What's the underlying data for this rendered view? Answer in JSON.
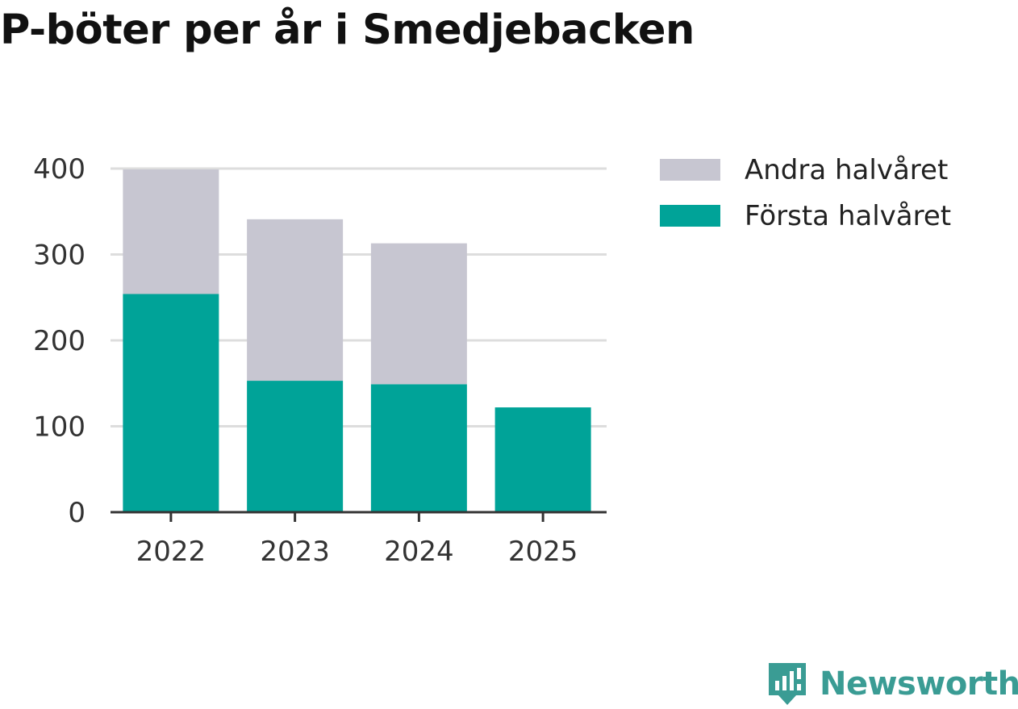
{
  "title": "P-böter per år i Smedjebacken",
  "chart_data": {
    "type": "bar",
    "stacked": true,
    "categories": [
      "2022",
      "2023",
      "2024",
      "2025"
    ],
    "series": [
      {
        "name": "Första halvåret",
        "values": [
          254,
          153,
          149,
          122
        ],
        "color": "#00a398"
      },
      {
        "name": "Andra halvåret",
        "values": [
          145,
          188,
          164,
          0
        ],
        "color": "#c7c6d1"
      }
    ],
    "ylim": [
      0,
      400
    ],
    "yticks": [
      0,
      100,
      200,
      300,
      400
    ],
    "xlabel": "",
    "ylabel": "",
    "grid": true,
    "legend_position": "right"
  },
  "legend": [
    {
      "label": "Andra halvåret",
      "color": "#c7c6d1"
    },
    {
      "label": "Första halvåret",
      "color": "#00a398"
    }
  ],
  "brand": {
    "name": "Newsworthy",
    "icon": "newsworthy-logo-icon",
    "color": "#3a9c94"
  }
}
